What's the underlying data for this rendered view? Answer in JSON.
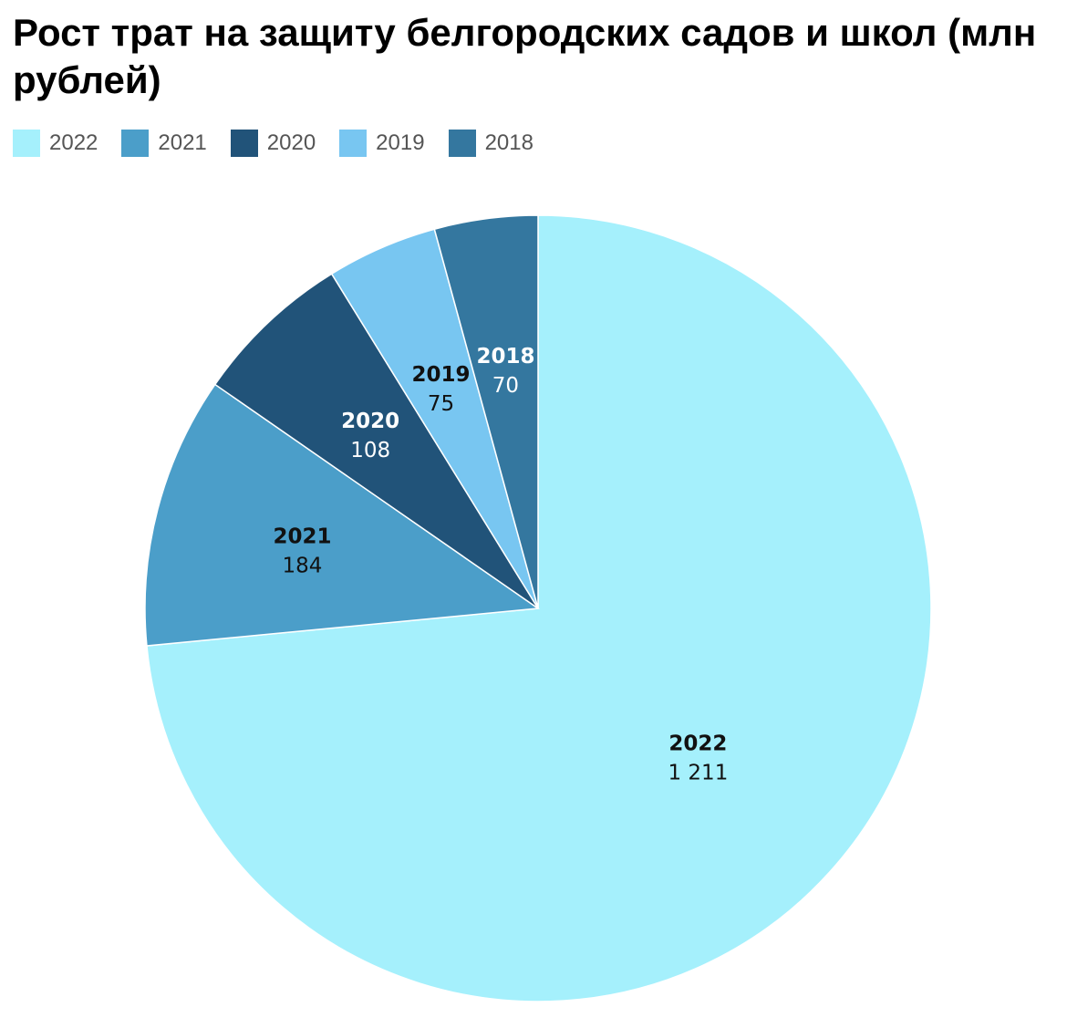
{
  "chart_data": {
    "type": "pie",
    "title": "Рост трат на защиту белгородских садов и школ (млн рублей)",
    "legend_position": "top-left",
    "slices": [
      {
        "name": "2022",
        "value": 1211,
        "value_label": "1 211",
        "color": "#a5f0fc",
        "label_color": "#111111"
      },
      {
        "name": "2021",
        "value": 184,
        "value_label": "184",
        "color": "#4b9ec9",
        "label_color": "#111111"
      },
      {
        "name": "2020",
        "value": 108,
        "value_label": "108",
        "color": "#215379",
        "label_color": "#ffffff"
      },
      {
        "name": "2019",
        "value": 75,
        "value_label": "75",
        "color": "#78c6f1",
        "label_color": "#111111"
      },
      {
        "name": "2018",
        "value": 70,
        "value_label": "70",
        "color": "#34779f",
        "label_color": "#ffffff"
      }
    ]
  }
}
